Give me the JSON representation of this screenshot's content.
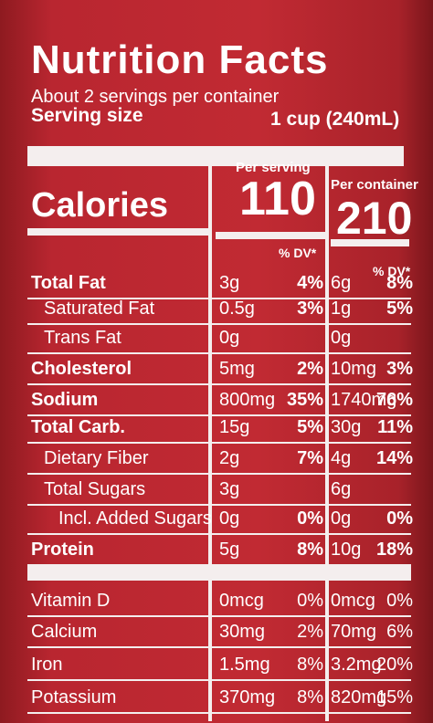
{
  "header": {
    "title": "Nutrition Facts",
    "servings": "About 2 servings per container",
    "serving_size_label": "Serving size",
    "serving_size_value": "1 cup (240mL)"
  },
  "columns": {
    "per_serving": "Per serving",
    "per_container": "Per container",
    "dv": "% DV*"
  },
  "calories": {
    "label": "Calories",
    "per_serving": "110",
    "per_container": "210"
  },
  "nutrients": [
    {
      "name": "Total Fat",
      "per_serving": "3g",
      "per_serving_dv": "4%",
      "per_container": "6g",
      "per_container_dv": "8%"
    },
    {
      "name": "Saturated Fat",
      "per_serving": "0.5g",
      "per_serving_dv": "3%",
      "per_container": "1g",
      "per_container_dv": "5%"
    },
    {
      "name": "Trans Fat",
      "per_serving": "0g",
      "per_container": "0g"
    },
    {
      "name": "Cholesterol",
      "per_serving": "5mg",
      "per_serving_dv": "2%",
      "per_container": "10mg",
      "per_container_dv": "3%"
    },
    {
      "name": "Sodium",
      "per_serving": "800mg",
      "per_serving_dv": "35%",
      "per_container": "1740mg",
      "per_container_dv": "76%"
    },
    {
      "name": "Total Carb.",
      "per_serving": "15g",
      "per_serving_dv": "5%",
      "per_container": "30g",
      "per_container_dv": "11%"
    },
    {
      "name": "Dietary Fiber",
      "per_serving": "2g",
      "per_serving_dv": "7%",
      "per_container": "4g",
      "per_container_dv": "14%"
    },
    {
      "name": "Total Sugars",
      "per_serving": "3g",
      "per_container": "6g"
    },
    {
      "name": "Incl. Added Sugars",
      "per_serving": "0g",
      "per_serving_dv": "0%",
      "per_container": "0g",
      "per_container_dv": "0%"
    },
    {
      "name": "Protein",
      "per_serving": "5g",
      "per_serving_dv": "8%",
      "per_container": "10g",
      "per_container_dv": "18%"
    }
  ],
  "vitamins": [
    {
      "name": "Vitamin D",
      "per_serving": "0mcg",
      "per_serving_dv": "0%",
      "per_container": "0mcg",
      "per_container_dv": "0%"
    },
    {
      "name": "Calcium",
      "per_serving": "30mg",
      "per_serving_dv": "2%",
      "per_container": "70mg",
      "per_container_dv": "6%"
    },
    {
      "name": "Iron",
      "per_serving": "1.5mg",
      "per_serving_dv": "8%",
      "per_container": "3.2mg",
      "per_container_dv": "20%"
    },
    {
      "name": "Potassium",
      "per_serving": "370mg",
      "per_serving_dv": "8%",
      "per_container": "820mg",
      "per_container_dv": "15%"
    }
  ]
}
